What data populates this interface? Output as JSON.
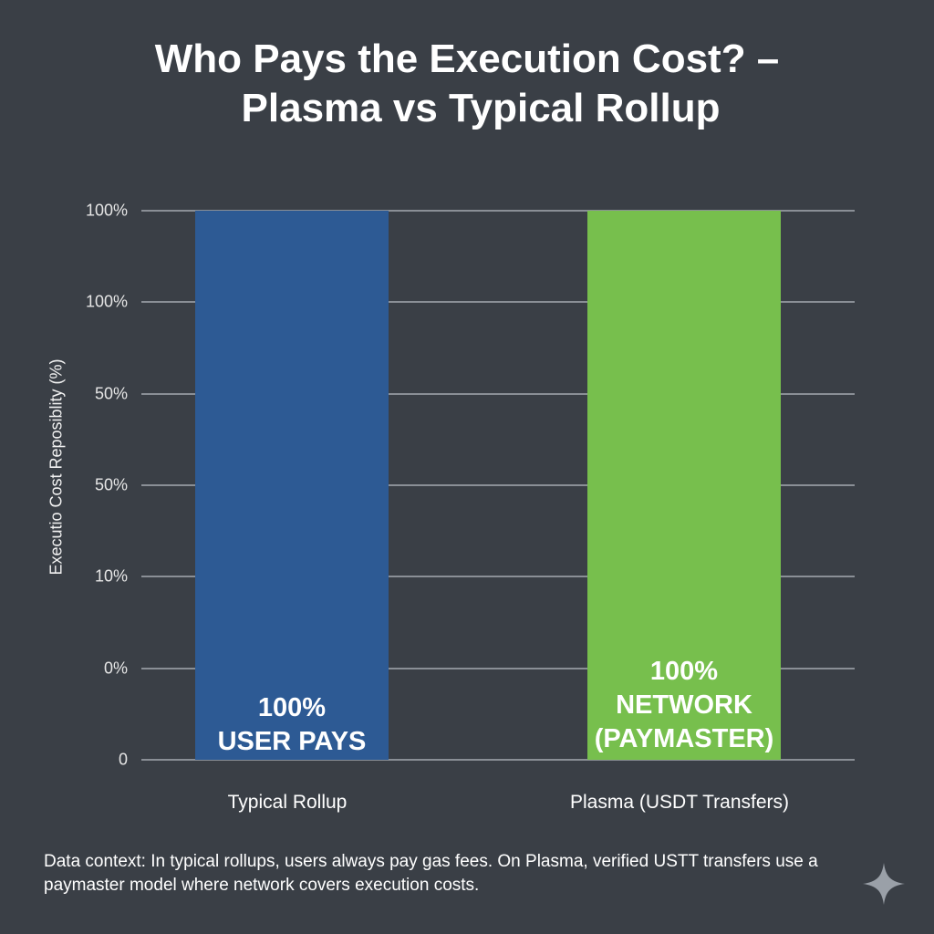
{
  "title_line1": "Who Pays the Execution Cost? –",
  "title_line2": "Plasma vs Typical Rollup",
  "footnote": "Data context: In typical rollups, users always pay gas fees. On Plasma, verified USTT transfers use a paymaster model where network covers execution costs.",
  "sparkle_icon": "sparkle-icon",
  "chart_data": {
    "type": "bar",
    "categories": [
      "Typical Rollup",
      "Plasma (USDT Transfers)"
    ],
    "values": [
      100,
      100
    ],
    "ylabel": "Executio Cost Reposiblity (%)",
    "ylim": [
      0,
      100
    ],
    "y_tick_labels": [
      "0",
      "0%",
      "10%",
      "50%",
      "50%",
      "100%",
      "100%"
    ],
    "grid": true,
    "colors": [
      "#2d5a94",
      "#77bf4d"
    ],
    "bar_labels": [
      [
        "100%",
        "USER PAYS"
      ],
      [
        "100%",
        "NETWORK",
        "(PAYMASTER)"
      ]
    ]
  }
}
